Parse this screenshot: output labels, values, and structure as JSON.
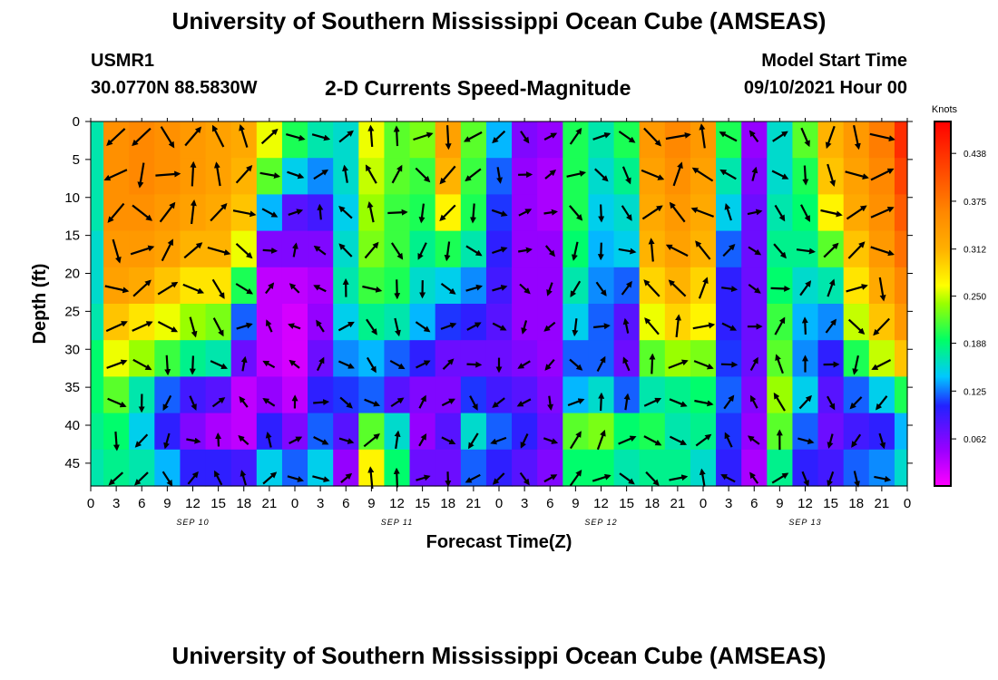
{
  "header": {
    "title": "University of Southern Mississippi Ocean Cube (AMSEAS)",
    "station": "USMR1",
    "coords": "30.0770N  88.5830W",
    "chart_title": "2-D Currents Speed-Magnitude",
    "model_start_label": "Model Start Time",
    "model_start_value": "09/10/2021 Hour 00"
  },
  "footer": {
    "title": "University of Southern Mississippi Ocean Cube (AMSEAS)"
  },
  "chart_data": {
    "type": "heatmap",
    "title": "2-D Currents Speed-Magnitude",
    "xlabel": "Forecast Time(Z)",
    "ylabel": "Depth (ft)",
    "xlim": [
      0,
      96
    ],
    "ylim": [
      0,
      48
    ],
    "y_inverted": true,
    "x_tick_labels": [
      "0",
      "3",
      "6",
      "9",
      "12",
      "15",
      "18",
      "21",
      "0",
      "3",
      "6",
      "9",
      "12",
      "15",
      "18",
      "21",
      "0",
      "3",
      "6",
      "9",
      "12",
      "15",
      "18",
      "21",
      "0",
      "3",
      "6",
      "9",
      "12",
      "15",
      "18",
      "21",
      "0"
    ],
    "y_ticks": [
      0,
      5,
      10,
      15,
      20,
      25,
      30,
      35,
      40,
      45
    ],
    "date_labels": [
      "SEP 10",
      "SEP 11",
      "SEP 12",
      "SEP 13"
    ],
    "colorbar": {
      "label": "Knots",
      "range": [
        0,
        0.48
      ],
      "ticks": [
        "0.438",
        "0.375",
        "0.312",
        "0.250",
        "0.188",
        "0.125",
        "0.062"
      ],
      "tick_values": [
        0.438,
        0.375,
        0.312,
        0.25,
        0.188,
        0.125,
        0.062
      ]
    },
    "arrows": "Current direction vectors at 3-hourly intervals and 5 ft depth spacing",
    "columns": [
      {
        "hour": 0,
        "profile": [
          0.17,
          0.17,
          0.17,
          0.16,
          0.16,
          0.17,
          0.19,
          0.19,
          0.18,
          0.17
        ]
      },
      {
        "hour": 3,
        "profile": [
          0.35,
          0.35,
          0.35,
          0.34,
          0.33,
          0.3,
          0.26,
          0.22,
          0.19,
          0.18
        ]
      },
      {
        "hour": 6,
        "profile": [
          0.36,
          0.36,
          0.35,
          0.34,
          0.32,
          0.28,
          0.24,
          0.17,
          0.15,
          0.17
        ]
      },
      {
        "hour": 9,
        "profile": [
          0.35,
          0.35,
          0.34,
          0.33,
          0.3,
          0.26,
          0.21,
          0.12,
          0.1,
          0.14
        ]
      },
      {
        "hour": 12,
        "profile": [
          0.34,
          0.34,
          0.33,
          0.31,
          0.28,
          0.24,
          0.18,
          0.09,
          0.06,
          0.1
        ]
      },
      {
        "hour": 15,
        "profile": [
          0.33,
          0.33,
          0.32,
          0.31,
          0.28,
          0.23,
          0.17,
          0.08,
          0.04,
          0.1
        ]
      },
      {
        "hour": 18,
        "profile": [
          0.32,
          0.31,
          0.3,
          0.26,
          0.2,
          0.12,
          0.07,
          0.03,
          0.03,
          0.09
        ]
      },
      {
        "hour": 21,
        "profile": [
          0.26,
          0.22,
          0.14,
          0.06,
          0.03,
          0.03,
          0.03,
          0.05,
          0.1,
          0.15
        ]
      },
      {
        "hour": 24,
        "profile": [
          0.2,
          0.15,
          0.08,
          0.06,
          0.03,
          0.02,
          0.02,
          0.03,
          0.06,
          0.12
        ]
      },
      {
        "hour": 27,
        "profile": [
          0.17,
          0.13,
          0.09,
          0.06,
          0.04,
          0.05,
          0.07,
          0.1,
          0.12,
          0.15
        ]
      },
      {
        "hour": 30,
        "profile": [
          0.16,
          0.16,
          0.15,
          0.16,
          0.17,
          0.15,
          0.13,
          0.11,
          0.08,
          0.05
        ]
      },
      {
        "hour": 33,
        "profile": [
          0.26,
          0.25,
          0.24,
          0.23,
          0.21,
          0.18,
          0.14,
          0.12,
          0.22,
          0.27
        ]
      },
      {
        "hour": 36,
        "profile": [
          0.22,
          0.22,
          0.21,
          0.21,
          0.2,
          0.17,
          0.12,
          0.08,
          0.16,
          0.19
        ]
      },
      {
        "hour": 39,
        "profile": [
          0.23,
          0.21,
          0.2,
          0.18,
          0.16,
          0.14,
          0.1,
          0.06,
          0.05,
          0.07
        ]
      },
      {
        "hour": 42,
        "profile": [
          0.33,
          0.31,
          0.27,
          0.2,
          0.15,
          0.11,
          0.07,
          0.06,
          0.08,
          0.07
        ]
      },
      {
        "hour": 45,
        "profile": [
          0.22,
          0.21,
          0.2,
          0.17,
          0.13,
          0.1,
          0.07,
          0.11,
          0.16,
          0.12
        ]
      },
      {
        "hour": 48,
        "profile": [
          0.14,
          0.12,
          0.11,
          0.1,
          0.09,
          0.08,
          0.07,
          0.09,
          0.12,
          0.1
        ]
      },
      {
        "hour": 51,
        "profile": [
          0.06,
          0.05,
          0.05,
          0.05,
          0.05,
          0.05,
          0.06,
          0.08,
          0.1,
          0.08
        ]
      },
      {
        "hour": 54,
        "profile": [
          0.05,
          0.04,
          0.04,
          0.05,
          0.05,
          0.05,
          0.05,
          0.06,
          0.07,
          0.06
        ]
      },
      {
        "hour": 57,
        "profile": [
          0.2,
          0.2,
          0.2,
          0.19,
          0.17,
          0.15,
          0.12,
          0.14,
          0.22,
          0.19
        ]
      },
      {
        "hour": 60,
        "profile": [
          0.17,
          0.16,
          0.15,
          0.14,
          0.13,
          0.12,
          0.12,
          0.16,
          0.23,
          0.19
        ]
      },
      {
        "hour": 63,
        "profile": [
          0.2,
          0.18,
          0.16,
          0.15,
          0.12,
          0.08,
          0.07,
          0.12,
          0.19,
          0.17
        ]
      },
      {
        "hour": 66,
        "profile": [
          0.34,
          0.33,
          0.32,
          0.31,
          0.29,
          0.26,
          0.22,
          0.17,
          0.2,
          0.18
        ]
      },
      {
        "hour": 69,
        "profile": [
          0.36,
          0.35,
          0.34,
          0.33,
          0.31,
          0.29,
          0.24,
          0.18,
          0.17,
          0.18
        ]
      },
      {
        "hour": 72,
        "profile": [
          0.34,
          0.33,
          0.32,
          0.31,
          0.29,
          0.27,
          0.23,
          0.19,
          0.18,
          0.16
        ]
      },
      {
        "hour": 75,
        "profile": [
          0.2,
          0.17,
          0.15,
          0.12,
          0.1,
          0.1,
          0.11,
          0.12,
          0.11,
          0.1
        ]
      },
      {
        "hour": 78,
        "profile": [
          0.05,
          0.06,
          0.07,
          0.07,
          0.07,
          0.07,
          0.07,
          0.06,
          0.05,
          0.04
        ]
      },
      {
        "hour": 81,
        "profile": [
          0.16,
          0.16,
          0.17,
          0.18,
          0.19,
          0.21,
          0.22,
          0.24,
          0.22,
          0.18
        ]
      },
      {
        "hour": 84,
        "profile": [
          0.22,
          0.2,
          0.19,
          0.18,
          0.16,
          0.14,
          0.13,
          0.15,
          0.12,
          0.1
        ]
      },
      {
        "hour": 87,
        "profile": [
          0.31,
          0.3,
          0.27,
          0.22,
          0.17,
          0.13,
          0.1,
          0.08,
          0.07,
          0.09
        ]
      },
      {
        "hour": 90,
        "profile": [
          0.34,
          0.33,
          0.32,
          0.3,
          0.28,
          0.25,
          0.2,
          0.12,
          0.09,
          0.12
        ]
      },
      {
        "hour": 93,
        "profile": [
          0.37,
          0.36,
          0.35,
          0.34,
          0.32,
          0.3,
          0.25,
          0.15,
          0.1,
          0.13
        ]
      },
      {
        "hour": 96,
        "profile": [
          0.44,
          0.42,
          0.4,
          0.38,
          0.36,
          0.34,
          0.3,
          0.2,
          0.14,
          0.16
        ]
      }
    ]
  }
}
